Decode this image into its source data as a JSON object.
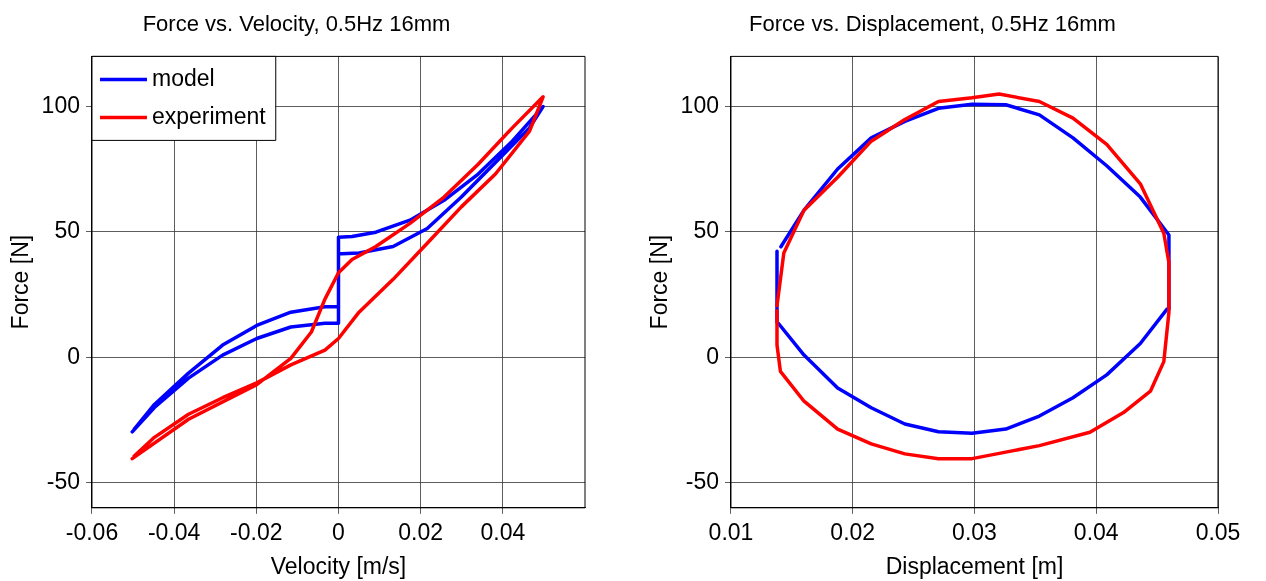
{
  "chart_data": [
    {
      "type": "line",
      "title": "Force vs. Velocity, 0.5Hz 16mm",
      "xlabel": "Velocity [m/s]",
      "ylabel": "Force [N]",
      "xlim": [
        -0.06,
        0.06
      ],
      "xticks": [
        -0.06,
        -0.04,
        -0.02,
        0,
        0.02,
        0.04
      ],
      "ylim": [
        -60,
        120
      ],
      "yticks": [
        -50,
        0,
        50,
        100
      ],
      "grid": true,
      "legend": "top left",
      "line_style": "solid",
      "marker": "none",
      "series": [
        {
          "name": "model",
          "color": "#0000ff",
          "x": [
            -0.0502,
            -0.0448,
            -0.0365,
            -0.0282,
            -0.0199,
            -0.0116,
            -0.0033,
            0,
            0,
            0.0033,
            0.0091,
            0.0174,
            0.0257,
            0.034,
            0.0423,
            0.0498,
            0.0465,
            0.0382,
            0.0299,
            0.0216,
            0.0133,
            0.005,
            0.0008,
            0,
            0,
            -0.0033,
            -0.0116,
            -0.0199,
            -0.0282,
            -0.0365,
            -0.0448,
            -0.0497
          ],
          "values": [
            -29.7,
            -20,
            -8.3,
            0.9,
            7.5,
            12.1,
            13.6,
            13.6,
            47.9,
            48.2,
            49.9,
            54.7,
            62.6,
            73.1,
            86.2,
            100,
            91.5,
            77.7,
            63.9,
            51.4,
            44.2,
            41.6,
            41.3,
            41.3,
            20.2,
            20.2,
            18,
            12.7,
            4.9,
            -6.3,
            -18.8,
            -28.6
          ]
        },
        {
          "name": "experiment",
          "color": "#ff0000",
          "x": [
            -0.0502,
            -0.0365,
            -0.0199,
            -0.0116,
            -0.0066,
            -0.0033,
            0,
            0.0033,
            0.0091,
            0.0174,
            0.0257,
            0.034,
            0.0423,
            0.0498,
            0.0465,
            0.0382,
            0.0299,
            0.0216,
            0.0133,
            0.005,
            0,
            -0.0033,
            -0.0116,
            -0.0199,
            -0.0282,
            -0.0365,
            -0.0448,
            -0.0497
          ],
          "values": [
            -40.4,
            -24.7,
            -10.9,
            -0.4,
            10.1,
            23.2,
            33.7,
            39,
            44.2,
            53.4,
            63.9,
            77,
            91.5,
            103.9,
            90.2,
            73.1,
            60,
            45.5,
            31.1,
            18,
            7.5,
            2.9,
            -3,
            -10.2,
            -16.1,
            -22.7,
            -31.9,
            -39.4
          ]
        }
      ]
    },
    {
      "type": "line",
      "title": "Force vs. Displacement, 0.5Hz 16mm",
      "xlabel": "Displacement [m]",
      "ylabel": "Force [N]",
      "xlim": [
        0.01,
        0.05
      ],
      "xticks": [
        0.01,
        0.02,
        0.03,
        0.04,
        0.05
      ],
      "ylim": [
        -60,
        120
      ],
      "yticks": [
        -50,
        0,
        50,
        100
      ],
      "grid": true,
      "line_style": "solid",
      "marker": "none",
      "series": [
        {
          "color": "#0000ff",
          "x": [
            0.01378,
            0.01378,
            0.01392,
            0.016,
            0.01876,
            0.02152,
            0.02428,
            0.02704,
            0.0298,
            0.03257,
            0.03533,
            0.03809,
            0.04086,
            0.04362,
            0.04583,
            0.04597,
            0.04597,
            0.04362,
            0.04086,
            0.03809,
            0.03533,
            0.03257,
            0.0298,
            0.02704,
            0.02428,
            0.02152,
            0.01876,
            0.016,
            0.0141
          ],
          "values": [
            42.3,
            14,
            13.4,
            0.9,
            -12.2,
            -20.1,
            -26.6,
            -29.7,
            -30.3,
            -28.6,
            -23.4,
            -16.1,
            -7,
            5.5,
            19.3,
            19.3,
            48.8,
            63.9,
            76.4,
            87.5,
            96.7,
            100.7,
            100.9,
            99.3,
            94.1,
            87.5,
            75.1,
            58.7,
            44.1
          ]
        },
        {
          "color": "#ff0000",
          "x": [
            0.01378,
            0.01434,
            0.016,
            0.01876,
            0.02152,
            0.02428,
            0.02704,
            0.0298,
            0.03202,
            0.03533,
            0.03809,
            0.04086,
            0.04362,
            0.04555,
            0.04597,
            0.04597,
            0.04555,
            0.04445,
            0.04224,
            0.03948,
            0.03533,
            0.03257,
            0.0298,
            0.02704,
            0.02428,
            0.02152,
            0.01876,
            0.016,
            0.01406,
            0.01378,
            0.01378
          ],
          "values": [
            20.6,
            41.6,
            58.7,
            71.8,
            86.2,
            94.8,
            102,
            103.5,
            105,
            102,
            95.4,
            84.9,
            69.2,
            49.5,
            37.7,
            18,
            -1.7,
            -13.5,
            -22,
            -29.9,
            -35.2,
            -37.8,
            -40.4,
            -40.4,
            -38.5,
            -34.5,
            -28.6,
            -17.5,
            -5.6,
            4.9,
            18.6
          ]
        }
      ]
    }
  ]
}
